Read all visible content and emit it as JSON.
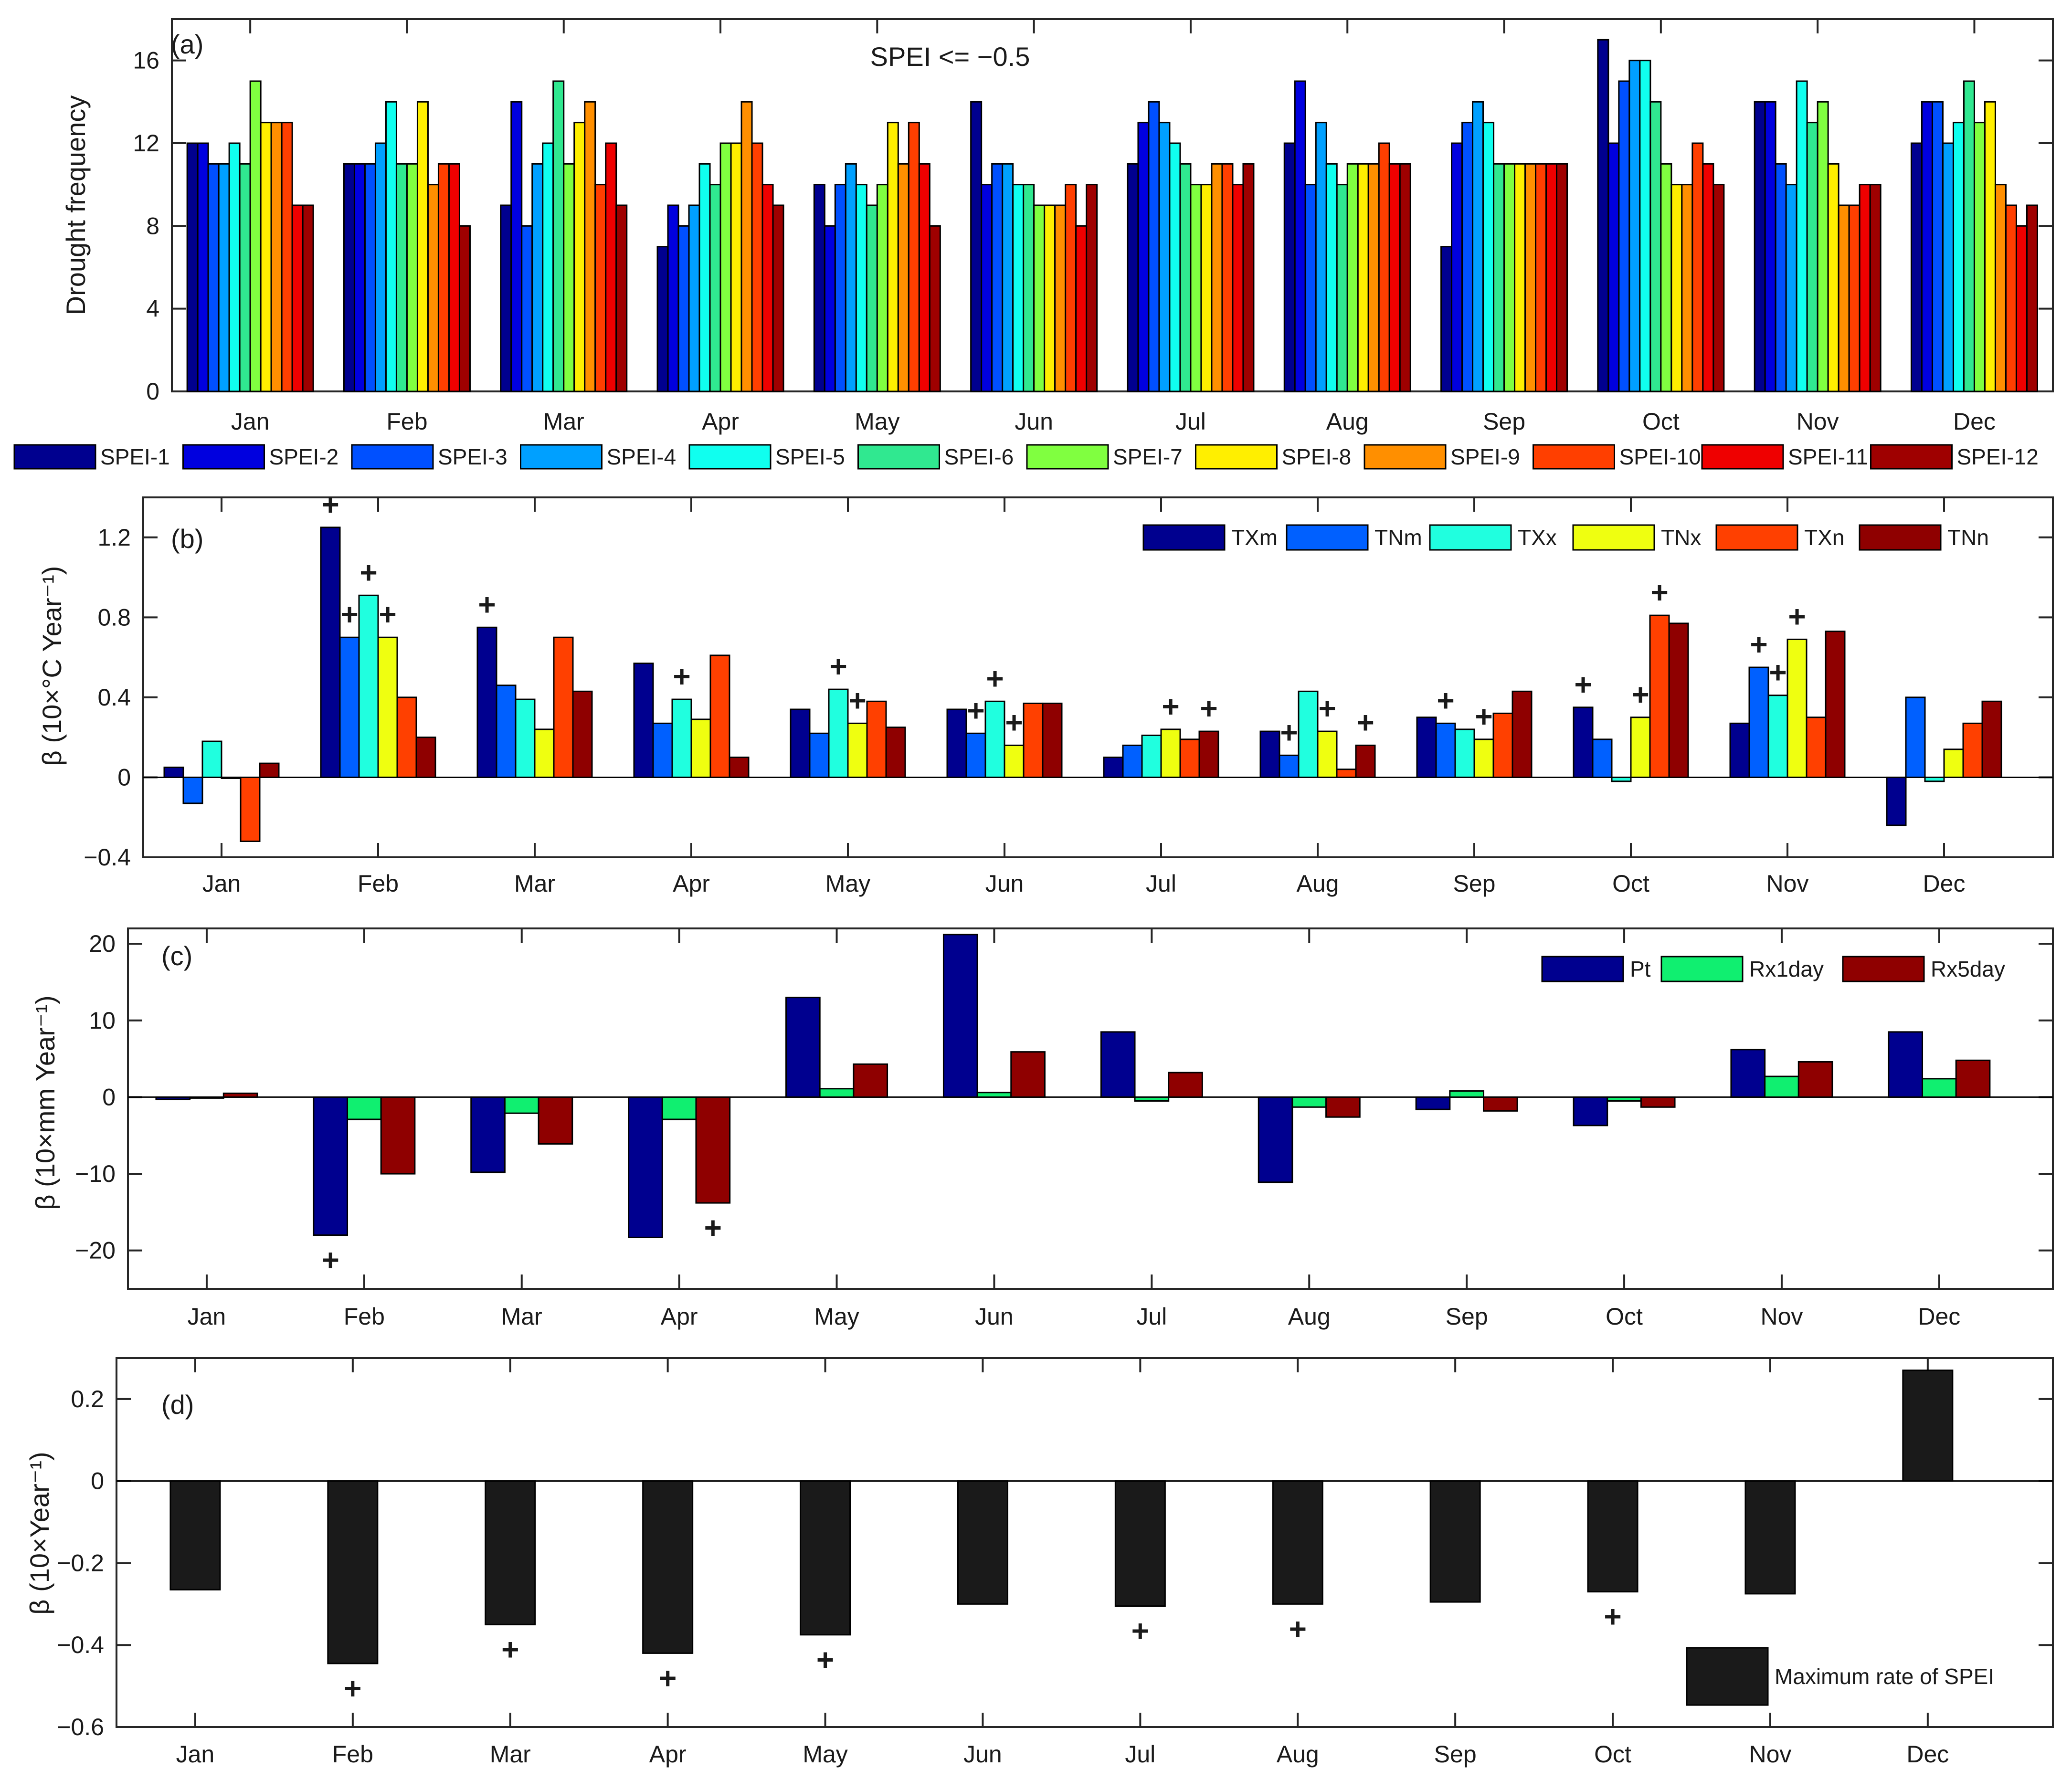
{
  "months": [
    "Jan",
    "Feb",
    "Mar",
    "Apr",
    "May",
    "Jun",
    "Jul",
    "Aug",
    "Sep",
    "Oct",
    "Nov",
    "Dec"
  ],
  "chart_data": [
    {
      "panel": "(a)",
      "type": "bar",
      "title": "SPEI <= −0.5",
      "ylabel": "Drought frequency",
      "ylim": [
        0,
        18
      ],
      "yticks": [
        0,
        4,
        8,
        12,
        16
      ],
      "categories": [
        "Jan",
        "Feb",
        "Mar",
        "Apr",
        "May",
        "Jun",
        "Jul",
        "Aug",
        "Sep",
        "Oct",
        "Nov",
        "Dec"
      ],
      "legend_position": "bottom",
      "series": [
        {
          "name": "SPEI-1",
          "color": "#00008f",
          "values": [
            12,
            11,
            9,
            7,
            10,
            14,
            11,
            12,
            7,
            17,
            14,
            12
          ]
        },
        {
          "name": "SPEI-2",
          "color": "#0000df",
          "values": [
            12,
            11,
            14,
            9,
            8,
            10,
            13,
            15,
            12,
            12,
            14,
            14
          ]
        },
        {
          "name": "SPEI-3",
          "color": "#0050ff",
          "values": [
            11,
            11,
            8,
            8,
            10,
            11,
            14,
            10,
            13,
            15,
            11,
            14
          ]
        },
        {
          "name": "SPEI-4",
          "color": "#00a0ff",
          "values": [
            11,
            12,
            11,
            9,
            11,
            11,
            13,
            13,
            14,
            16,
            10,
            12
          ]
        },
        {
          "name": "SPEI-5",
          "color": "#10ffef",
          "values": [
            12,
            14,
            12,
            11,
            10,
            10,
            12,
            11,
            13,
            16,
            15,
            13
          ]
        },
        {
          "name": "SPEI-6",
          "color": "#30e890",
          "values": [
            11,
            11,
            15,
            10,
            9,
            10,
            11,
            10,
            11,
            14,
            13,
            15
          ]
        },
        {
          "name": "SPEI-7",
          "color": "#80ff40",
          "values": [
            15,
            11,
            11,
            12,
            10,
            9,
            10,
            11,
            11,
            11,
            14,
            13
          ]
        },
        {
          "name": "SPEI-8",
          "color": "#ffef00",
          "values": [
            13,
            14,
            13,
            12,
            13,
            9,
            10,
            11,
            11,
            10,
            11,
            14
          ]
        },
        {
          "name": "SPEI-9",
          "color": "#ff8f00",
          "values": [
            13,
            10,
            14,
            14,
            11,
            9,
            11,
            11,
            11,
            10,
            9,
            10
          ]
        },
        {
          "name": "SPEI-10",
          "color": "#ff3f00",
          "values": [
            13,
            11,
            10,
            12,
            13,
            10,
            11,
            12,
            11,
            12,
            9,
            9
          ]
        },
        {
          "name": "SPEI-11",
          "color": "#ef0000",
          "values": [
            9,
            11,
            12,
            10,
            11,
            8,
            10,
            11,
            11,
            11,
            10,
            8
          ]
        },
        {
          "name": "SPEI-12",
          "color": "#9f0000",
          "values": [
            9,
            8,
            9,
            9,
            8,
            10,
            11,
            11,
            11,
            10,
            10,
            9
          ]
        }
      ]
    },
    {
      "panel": "(b)",
      "type": "bar",
      "ylabel": "β (10×°C Year⁻¹)",
      "ylim": [
        -0.4,
        1.4
      ],
      "yticks": [
        -0.4,
        0,
        0.4,
        0.8,
        1.2
      ],
      "categories": [
        "Jan",
        "Feb",
        "Mar",
        "Apr",
        "May",
        "Jun",
        "Jul",
        "Aug",
        "Sep",
        "Oct",
        "Nov",
        "Dec"
      ],
      "significance_marker": "+",
      "legend_position": "top-right",
      "series": [
        {
          "name": "TXm",
          "color": "#00008f",
          "values": [
            0.05,
            1.25,
            0.75,
            0.57,
            0.34,
            0.34,
            0.1,
            0.23,
            0.3,
            0.35,
            0.27,
            -0.24
          ],
          "significant": [
            false,
            true,
            true,
            false,
            false,
            false,
            false,
            false,
            false,
            true,
            false,
            false
          ]
        },
        {
          "name": "TNm",
          "color": "#0060ff",
          "values": [
            -0.13,
            0.7,
            0.46,
            0.27,
            0.22,
            0.22,
            0.16,
            0.11,
            0.27,
            0.19,
            0.55,
            0.4
          ],
          "significant": [
            false,
            true,
            false,
            false,
            false,
            true,
            false,
            true,
            true,
            false,
            true,
            false
          ]
        },
        {
          "name": "TXx",
          "color": "#20ffdf",
          "values": [
            0.18,
            0.91,
            0.39,
            0.39,
            0.44,
            0.38,
            0.21,
            0.43,
            0.24,
            -0.02,
            0.41,
            -0.02
          ],
          "significant": [
            false,
            true,
            false,
            true,
            true,
            true,
            false,
            false,
            false,
            false,
            true,
            false
          ]
        },
        {
          "name": "TNx",
          "color": "#efff10",
          "values": [
            0,
            0.7,
            0.24,
            0.29,
            0.27,
            0.16,
            0.24,
            0.23,
            0.19,
            0.3,
            0.69,
            0.14
          ],
          "significant": [
            false,
            true,
            false,
            false,
            true,
            true,
            true,
            true,
            true,
            true,
            true,
            false
          ]
        },
        {
          "name": "TXn",
          "color": "#ff4000",
          "values": [
            -0.32,
            0.4,
            0.7,
            0.61,
            0.38,
            0.37,
            0.19,
            0.04,
            0.32,
            0.81,
            0.3,
            0.27
          ],
          "significant": [
            false,
            false,
            false,
            false,
            false,
            false,
            false,
            false,
            false,
            true,
            false,
            false
          ]
        },
        {
          "name": "TNn",
          "color": "#8f0000",
          "values": [
            0.07,
            0.2,
            0.43,
            0.1,
            0.25,
            0.37,
            0.23,
            0.16,
            0.43,
            0.77,
            0.73,
            0.38
          ],
          "significant": [
            false,
            false,
            false,
            false,
            false,
            false,
            true,
            true,
            false,
            false,
            false,
            false
          ]
        }
      ]
    },
    {
      "panel": "(c)",
      "type": "bar",
      "ylabel": "β (10×mm Year⁻¹)",
      "ylim": [
        -25,
        22
      ],
      "yticks": [
        -20,
        -10,
        0,
        10,
        20
      ],
      "categories": [
        "Jan",
        "Feb",
        "Mar",
        "Apr",
        "May",
        "Jun",
        "Jul",
        "Aug",
        "Sep",
        "Oct",
        "Nov",
        "Dec"
      ],
      "significance_marker": "+",
      "legend_position": "top-right",
      "series": [
        {
          "name": "Pt",
          "color": "#00008f",
          "values": [
            -0.3,
            -18,
            -9.8,
            -18.3,
            13,
            21.2,
            8.5,
            -11.1,
            -1.6,
            -3.7,
            6.2,
            8.5
          ],
          "significant": [
            false,
            true,
            false,
            false,
            false,
            false,
            false,
            false,
            false,
            false,
            false,
            false
          ]
        },
        {
          "name": "Rx1day",
          "color": "#10ef70",
          "values": [
            0,
            -2.9,
            -2.1,
            -2.9,
            1.1,
            0.6,
            -0.5,
            -1.3,
            0.8,
            -0.5,
            2.7,
            2.4
          ],
          "significant": [
            false,
            false,
            false,
            false,
            false,
            false,
            false,
            false,
            false,
            false,
            false,
            false
          ]
        },
        {
          "name": "Rx5day",
          "color": "#8f0000",
          "values": [
            0.5,
            -10,
            -6.1,
            -13.8,
            4.3,
            5.9,
            3.2,
            -2.6,
            -1.8,
            -1.3,
            4.6,
            4.8
          ],
          "significant": [
            false,
            false,
            false,
            true,
            false,
            false,
            false,
            false,
            false,
            false,
            false,
            false
          ]
        }
      ]
    },
    {
      "panel": "(d)",
      "type": "bar",
      "ylabel": "β (10×Year⁻¹)",
      "ylim": [
        -0.6,
        0.3
      ],
      "yticks": [
        -0.6,
        -0.4,
        -0.2,
        0,
        0.2
      ],
      "categories": [
        "Jan",
        "Feb",
        "Mar",
        "Apr",
        "May",
        "Jun",
        "Jul",
        "Aug",
        "Sep",
        "Oct",
        "Nov",
        "Dec"
      ],
      "significance_marker": "+",
      "legend_position": "bottom-right",
      "series": [
        {
          "name": "Maximum rate of SPEI",
          "color": "#1a1a1a",
          "values": [
            -0.265,
            -0.445,
            -0.35,
            -0.42,
            -0.375,
            -0.3,
            -0.305,
            -0.3,
            -0.295,
            -0.27,
            -0.275,
            0.27
          ],
          "significant": [
            false,
            true,
            true,
            true,
            true,
            false,
            true,
            true,
            false,
            true,
            false,
            false
          ]
        }
      ]
    }
  ]
}
